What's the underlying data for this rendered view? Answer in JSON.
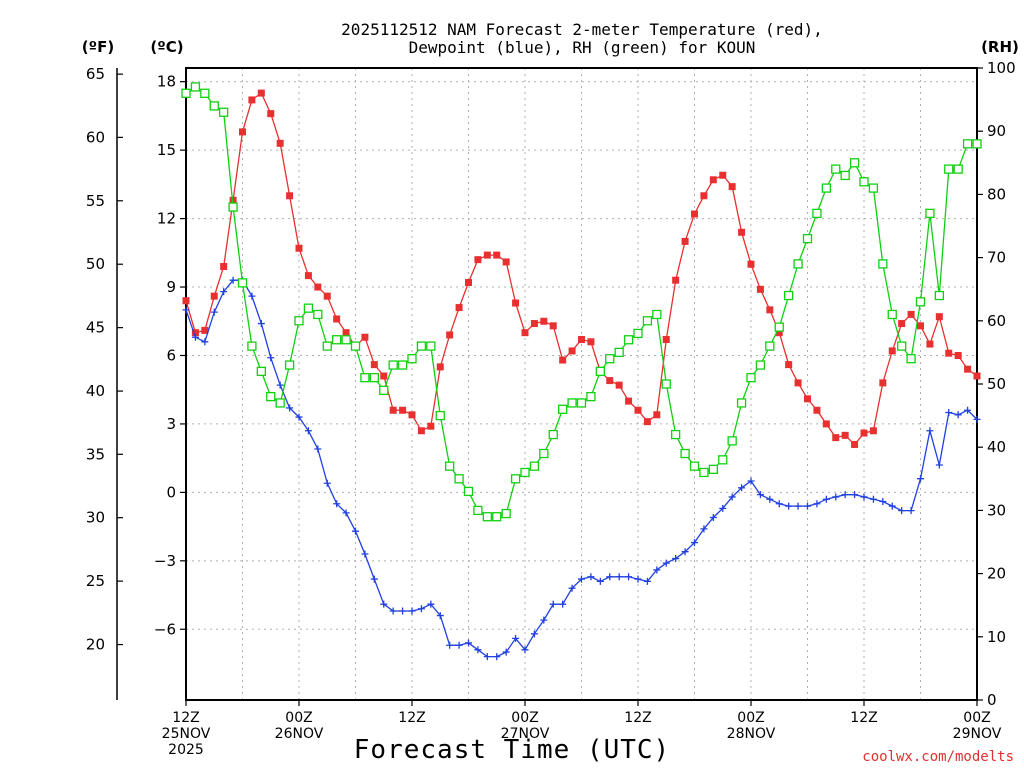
{
  "chart_data": {
    "type": "line",
    "title_line1": "2025112512 NAM Forecast 2-meter Temperature (red),",
    "title_line2": "Dewpoint (blue), RH (green) for KOUN",
    "units": {
      "fahrenheit": "(ºF)",
      "celsius": "(ºC)",
      "rh": "(RH)"
    },
    "xlabel": "Forecast Time (UTC)",
    "credit": "coolwx.com/modelts",
    "x_hours_range": [
      0,
      84
    ],
    "celsius_range": [
      -9.1,
      18.6
    ],
    "rh_range": [
      0,
      100
    ],
    "fahrenheit_ticks": [
      {
        "label": "65",
        "c": 18.33
      },
      {
        "label": "60",
        "c": 15.56
      },
      {
        "label": "55",
        "c": 12.78
      },
      {
        "label": "50",
        "c": 10.0
      },
      {
        "label": "45",
        "c": 7.22
      },
      {
        "label": "40",
        "c": 4.44
      },
      {
        "label": "35",
        "c": 1.67
      },
      {
        "label": "30",
        "c": -1.11
      },
      {
        "label": "25",
        "c": -3.89
      },
      {
        "label": "20",
        "c": -6.67
      }
    ],
    "celsius_ticks": [
      {
        "label": "18",
        "c": 18
      },
      {
        "label": "15",
        "c": 15
      },
      {
        "label": "12",
        "c": 12
      },
      {
        "label": "9",
        "c": 9
      },
      {
        "label": "6",
        "c": 6
      },
      {
        "label": "3",
        "c": 3
      },
      {
        "label": "0",
        "c": 0
      },
      {
        "label": "−3",
        "c": -3
      },
      {
        "label": "−6",
        "c": -6
      }
    ],
    "rh_ticks": [
      {
        "label": "100",
        "v": 100
      },
      {
        "label": "90",
        "v": 90
      },
      {
        "label": "80",
        "v": 80
      },
      {
        "label": "70",
        "v": 70
      },
      {
        "label": "60",
        "v": 60
      },
      {
        "label": "50",
        "v": 50
      },
      {
        "label": "40",
        "v": 40
      },
      {
        "label": "30",
        "v": 30
      },
      {
        "label": "20",
        "v": 20
      },
      {
        "label": "10",
        "v": 10
      },
      {
        "label": "0",
        "v": 0
      }
    ],
    "x_ticks": [
      {
        "h": 0,
        "lines": [
          "12Z",
          "25NOV",
          "2025"
        ]
      },
      {
        "h": 12,
        "lines": [
          "00Z",
          "26NOV"
        ]
      },
      {
        "h": 24,
        "lines": [
          "12Z"
        ]
      },
      {
        "h": 36,
        "lines": [
          "00Z",
          "27NOV"
        ]
      },
      {
        "h": 48,
        "lines": [
          "12Z"
        ]
      },
      {
        "h": 60,
        "lines": [
          "00Z",
          "28NOV"
        ]
      },
      {
        "h": 72,
        "lines": [
          "12Z"
        ]
      },
      {
        "h": 84,
        "lines": [
          "00Z",
          "29NOV"
        ]
      }
    ],
    "series": [
      {
        "name": "Temperature",
        "unit": "C",
        "color": "#e83030",
        "marker": "filled-square",
        "points": [
          [
            0,
            8.4
          ],
          [
            1,
            7.0
          ],
          [
            2,
            7.1
          ],
          [
            3,
            8.6
          ],
          [
            4,
            9.9
          ],
          [
            5,
            12.8
          ],
          [
            6,
            15.8
          ],
          [
            7,
            17.2
          ],
          [
            8,
            17.5
          ],
          [
            9,
            16.6
          ],
          [
            10,
            15.3
          ],
          [
            11,
            13.0
          ],
          [
            12,
            10.7
          ],
          [
            13,
            9.5
          ],
          [
            14,
            9.0
          ],
          [
            15,
            8.6
          ],
          [
            16,
            7.6
          ],
          [
            17,
            7.0
          ],
          [
            18,
            6.4
          ],
          [
            19,
            6.8
          ],
          [
            20,
            5.6
          ],
          [
            21,
            5.1
          ],
          [
            22,
            3.6
          ],
          [
            23,
            3.6
          ],
          [
            24,
            3.4
          ],
          [
            25,
            2.7
          ],
          [
            26,
            2.9
          ],
          [
            27,
            5.5
          ],
          [
            28,
            6.9
          ],
          [
            29,
            8.1
          ],
          [
            30,
            9.2
          ],
          [
            31,
            10.2
          ],
          [
            32,
            10.4
          ],
          [
            33,
            10.4
          ],
          [
            34,
            10.1
          ],
          [
            35,
            8.3
          ],
          [
            36,
            7.0
          ],
          [
            37,
            7.4
          ],
          [
            38,
            7.5
          ],
          [
            39,
            7.3
          ],
          [
            40,
            5.8
          ],
          [
            41,
            6.2
          ],
          [
            42,
            6.7
          ],
          [
            43,
            6.6
          ],
          [
            44,
            5.3
          ],
          [
            45,
            4.9
          ],
          [
            46,
            4.7
          ],
          [
            47,
            4.0
          ],
          [
            48,
            3.6
          ],
          [
            49,
            3.1
          ],
          [
            50,
            3.4
          ],
          [
            51,
            6.7
          ],
          [
            52,
            9.3
          ],
          [
            53,
            11.0
          ],
          [
            54,
            12.2
          ],
          [
            55,
            13.0
          ],
          [
            56,
            13.7
          ],
          [
            57,
            13.9
          ],
          [
            58,
            13.4
          ],
          [
            59,
            11.4
          ],
          [
            60,
            10.0
          ],
          [
            61,
            8.9
          ],
          [
            62,
            8.0
          ],
          [
            63,
            7.0
          ],
          [
            64,
            5.6
          ],
          [
            65,
            4.8
          ],
          [
            66,
            4.1
          ],
          [
            67,
            3.6
          ],
          [
            68,
            3.0
          ],
          [
            69,
            2.4
          ],
          [
            70,
            2.5
          ],
          [
            71,
            2.1
          ],
          [
            72,
            2.6
          ],
          [
            73,
            2.7
          ],
          [
            74,
            4.8
          ],
          [
            75,
            6.2
          ],
          [
            76,
            7.4
          ],
          [
            77,
            7.8
          ],
          [
            78,
            7.3
          ],
          [
            79,
            6.5
          ],
          [
            80,
            7.7
          ],
          [
            81,
            6.1
          ],
          [
            82,
            6.0
          ],
          [
            83,
            5.4
          ],
          [
            84,
            5.1
          ]
        ]
      },
      {
        "name": "Dewpoint",
        "unit": "C",
        "color": "#2040e0",
        "marker": "plus",
        "points": [
          [
            0,
            8.0
          ],
          [
            1,
            6.8
          ],
          [
            2,
            6.6
          ],
          [
            3,
            7.9
          ],
          [
            4,
            8.8
          ],
          [
            5,
            9.3
          ],
          [
            6,
            9.3
          ],
          [
            7,
            8.6
          ],
          [
            8,
            7.4
          ],
          [
            9,
            5.9
          ],
          [
            10,
            4.7
          ],
          [
            11,
            3.7
          ],
          [
            12,
            3.3
          ],
          [
            13,
            2.7
          ],
          [
            14,
            1.9
          ],
          [
            15,
            0.4
          ],
          [
            16,
            -0.5
          ],
          [
            17,
            -0.9
          ],
          [
            18,
            -1.7
          ],
          [
            19,
            -2.7
          ],
          [
            20,
            -3.8
          ],
          [
            21,
            -4.9
          ],
          [
            22,
            -5.2
          ],
          [
            23,
            -5.2
          ],
          [
            24,
            -5.2
          ],
          [
            25,
            -5.1
          ],
          [
            26,
            -4.9
          ],
          [
            27,
            -5.4
          ],
          [
            28,
            -6.7
          ],
          [
            29,
            -6.7
          ],
          [
            30,
            -6.6
          ],
          [
            31,
            -6.9
          ],
          [
            32,
            -7.2
          ],
          [
            33,
            -7.2
          ],
          [
            34,
            -7.0
          ],
          [
            35,
            -6.4
          ],
          [
            36,
            -6.9
          ],
          [
            37,
            -6.2
          ],
          [
            38,
            -5.6
          ],
          [
            39,
            -4.9
          ],
          [
            40,
            -4.9
          ],
          [
            41,
            -4.2
          ],
          [
            42,
            -3.8
          ],
          [
            43,
            -3.7
          ],
          [
            44,
            -3.9
          ],
          [
            45,
            -3.7
          ],
          [
            46,
            -3.7
          ],
          [
            47,
            -3.7
          ],
          [
            48,
            -3.8
          ],
          [
            49,
            -3.9
          ],
          [
            50,
            -3.4
          ],
          [
            51,
            -3.1
          ],
          [
            52,
            -2.9
          ],
          [
            53,
            -2.6
          ],
          [
            54,
            -2.2
          ],
          [
            55,
            -1.6
          ],
          [
            56,
            -1.1
          ],
          [
            57,
            -0.7
          ],
          [
            58,
            -0.2
          ],
          [
            59,
            0.2
          ],
          [
            60,
            0.5
          ],
          [
            61,
            -0.1
          ],
          [
            62,
            -0.3
          ],
          [
            63,
            -0.5
          ],
          [
            64,
            -0.6
          ],
          [
            65,
            -0.6
          ],
          [
            66,
            -0.6
          ],
          [
            67,
            -0.5
          ],
          [
            68,
            -0.3
          ],
          [
            69,
            -0.2
          ],
          [
            70,
            -0.1
          ],
          [
            71,
            -0.1
          ],
          [
            72,
            -0.2
          ],
          [
            73,
            -0.3
          ],
          [
            74,
            -0.4
          ],
          [
            75,
            -0.6
          ],
          [
            76,
            -0.8
          ],
          [
            77,
            -0.8
          ],
          [
            78,
            0.6
          ],
          [
            79,
            2.7
          ],
          [
            80,
            1.2
          ],
          [
            81,
            3.5
          ],
          [
            82,
            3.4
          ],
          [
            83,
            3.6
          ],
          [
            84,
            3.2
          ]
        ]
      },
      {
        "name": "RH",
        "unit": "%",
        "color": "#10d010",
        "marker": "open-square",
        "points": [
          [
            0,
            96
          ],
          [
            1,
            97
          ],
          [
            2,
            96
          ],
          [
            3,
            94
          ],
          [
            4,
            93
          ],
          [
            5,
            78
          ],
          [
            6,
            66
          ],
          [
            7,
            56
          ],
          [
            8,
            52
          ],
          [
            9,
            48
          ],
          [
            10,
            47
          ],
          [
            11,
            53
          ],
          [
            12,
            60
          ],
          [
            13,
            62
          ],
          [
            14,
            61
          ],
          [
            15,
            56
          ],
          [
            16,
            57
          ],
          [
            17,
            57
          ],
          [
            18,
            56
          ],
          [
            19,
            51
          ],
          [
            20,
            51
          ],
          [
            21,
            49
          ],
          [
            22,
            53
          ],
          [
            23,
            53
          ],
          [
            24,
            54
          ],
          [
            25,
            56
          ],
          [
            26,
            56
          ],
          [
            27,
            45
          ],
          [
            28,
            37
          ],
          [
            29,
            35
          ],
          [
            30,
            33
          ],
          [
            31,
            30
          ],
          [
            32,
            29
          ],
          [
            33,
            29
          ],
          [
            34,
            29.5
          ],
          [
            35,
            35
          ],
          [
            36,
            36
          ],
          [
            37,
            37
          ],
          [
            38,
            39
          ],
          [
            39,
            42
          ],
          [
            40,
            46
          ],
          [
            41,
            47
          ],
          [
            42,
            47
          ],
          [
            43,
            48
          ],
          [
            44,
            52
          ],
          [
            45,
            54
          ],
          [
            46,
            55
          ],
          [
            47,
            57
          ],
          [
            48,
            58
          ],
          [
            49,
            60
          ],
          [
            50,
            61
          ],
          [
            51,
            50
          ],
          [
            52,
            42
          ],
          [
            53,
            39
          ],
          [
            54,
            37
          ],
          [
            55,
            36
          ],
          [
            56,
            36.5
          ],
          [
            57,
            38
          ],
          [
            58,
            41
          ],
          [
            59,
            47
          ],
          [
            60,
            51
          ],
          [
            61,
            53
          ],
          [
            62,
            56
          ],
          [
            63,
            59
          ],
          [
            64,
            64
          ],
          [
            65,
            69
          ],
          [
            66,
            73
          ],
          [
            67,
            77
          ],
          [
            68,
            81
          ],
          [
            69,
            84
          ],
          [
            70,
            83
          ],
          [
            71,
            85
          ],
          [
            72,
            82
          ],
          [
            73,
            81
          ],
          [
            74,
            69
          ],
          [
            75,
            61
          ],
          [
            76,
            56
          ],
          [
            77,
            54
          ],
          [
            78,
            63
          ],
          [
            79,
            77
          ],
          [
            80,
            64
          ],
          [
            81,
            84
          ],
          [
            82,
            84
          ],
          [
            83,
            88
          ],
          [
            84,
            88
          ]
        ]
      }
    ]
  }
}
